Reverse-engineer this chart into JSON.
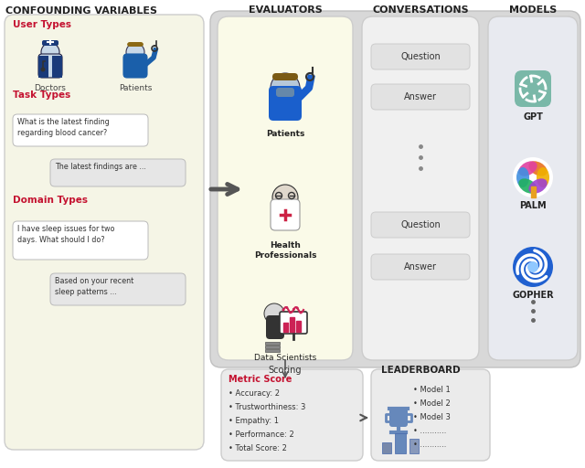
{
  "bg_color": "#ffffff",
  "left_panel_bg": "#f5f5e6",
  "left_panel_border": "#cccccc",
  "eval_panel_bg": "#fafae8",
  "eval_panel_border": "#cccccc",
  "conv_panel_bg": "#ebebeb",
  "conv_panel_border": "#cccccc",
  "models_panel_bg": "#e8eaf0",
  "models_panel_border": "#cccccc",
  "bottom_box_bg": "#ebebeb",
  "bottom_box_border": "#cccccc",
  "red_color": "#c41230",
  "dark_text": "#222222",
  "gray_text": "#444444",
  "arrow_color": "#555555",
  "bubble_light": "#e6e6e6",
  "bubble_dark": "#d8d8d8",
  "confounding_title": "CONFOUNDING VARIABLES",
  "evaluators_title": "EVALUATORS",
  "conversations_title": "CONVERSATIONS",
  "models_title": "MODELS",
  "user_types_label": "User Types",
  "task_types_label": "Task Types",
  "domain_types_label": "Domain Types",
  "doctors_label": "Doctors",
  "patients_label": "Patients",
  "eval_labels": [
    "Patients",
    "Health\nProfessionals",
    "Data Scientists"
  ],
  "conv_bubbles": [
    "Question",
    "Answer",
    "Question",
    "Answer"
  ],
  "model_labels": [
    "GPT",
    "PALM",
    "GOPHER"
  ],
  "scoring_label": "Scoring",
  "leaderboard_title": "LEADERBOARD",
  "metric_title": "Metric Score",
  "metric_items": [
    "Accuracy: 2",
    "Trustworthiness: 3",
    "Empathy: 1",
    "Performance: 2",
    "Total Score: 2"
  ],
  "leaderboard_items": [
    "Model 1",
    "Model 2",
    "Model 3",
    "...........",
    "..........."
  ],
  "task_bubble1": "What is the latest finding\nregarding blood cancer?",
  "task_bubble2": "The latest findings are ...",
  "domain_bubble1": "I have sleep issues for two\ndays. What should I do?",
  "domain_bubble2": "Based on your recent\nsleep patterns ..."
}
